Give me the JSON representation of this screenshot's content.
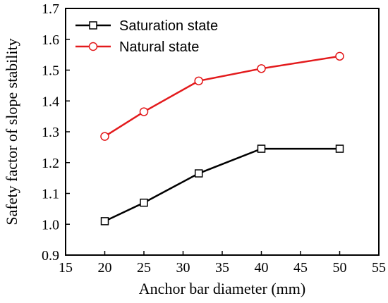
{
  "chart_data": {
    "type": "line",
    "title": "",
    "xlabel": "Anchor bar diameter (mm)",
    "ylabel": "Safety factor of slope stability",
    "x": [
      20,
      25,
      32,
      40,
      50
    ],
    "xlim": [
      15,
      55
    ],
    "ylim": [
      0.9,
      1.7
    ],
    "x_ticks": [
      15,
      20,
      25,
      30,
      35,
      40,
      45,
      50,
      55
    ],
    "y_ticks": [
      0.9,
      1.0,
      1.1,
      1.2,
      1.3,
      1.4,
      1.5,
      1.6,
      1.7
    ],
    "x_tick_labels": [
      "15",
      "20",
      "25",
      "30",
      "35",
      "40",
      "45",
      "50",
      "55"
    ],
    "y_tick_labels": [
      "0.9",
      "1.0",
      "1.1",
      "1.2",
      "1.3",
      "1.4",
      "1.5",
      "1.6",
      "1.7"
    ],
    "grid": false,
    "legend_position": "top-left",
    "series": [
      {
        "name": "Saturation state",
        "values": [
          1.01,
          1.07,
          1.165,
          1.245,
          1.245
        ],
        "color": "#000000",
        "marker": "square"
      },
      {
        "name": "Natural state",
        "values": [
          1.285,
          1.365,
          1.465,
          1.505,
          1.545
        ],
        "color": "#e31a1c",
        "marker": "circle"
      }
    ]
  }
}
